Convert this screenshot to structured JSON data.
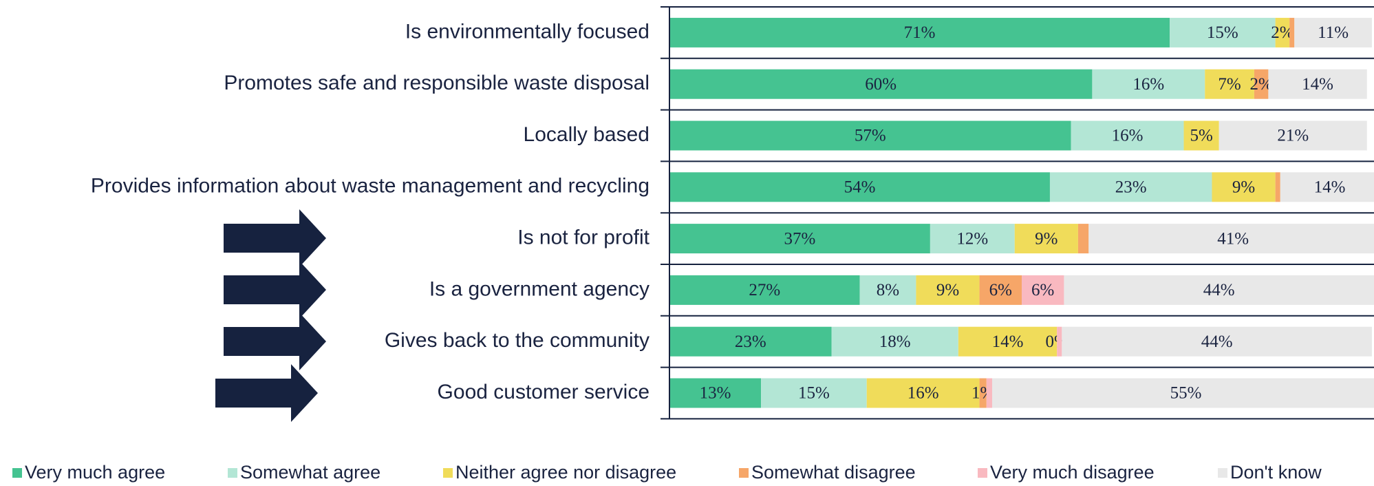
{
  "chart_data": {
    "type": "stacked-bar-horizontal",
    "categories": [
      "Is environmentally focused",
      "Promotes safe and responsible waste disposal",
      "Locally based",
      "Provides information about waste management and recycling",
      "Is not for profit",
      "Is a government agency",
      "Gives back to the community",
      "Good customer service"
    ],
    "xlim": [
      0,
      100
    ],
    "series": [
      {
        "name": "Very much agree",
        "color": "#45c391",
        "values": [
          71,
          60,
          57,
          54,
          37,
          27,
          23,
          13
        ],
        "value_labels": [
          "71%",
          "60%",
          "57%",
          "54%",
          "37%",
          "27%",
          "23%",
          "13%"
        ]
      },
      {
        "name": "Somewhat agree",
        "color": "#b3e6d5",
        "values": [
          15,
          16,
          16,
          23,
          12,
          8,
          18,
          15
        ],
        "value_labels": [
          "15%",
          "16%",
          "16%",
          "23%",
          "12%",
          "8%",
          "18%",
          "15%"
        ]
      },
      {
        "name": "Neither agree nor disagree",
        "color": "#f0dc5a",
        "values": [
          2,
          7,
          5,
          9,
          9,
          9,
          14,
          16
        ],
        "value_labels": [
          "2%",
          "7%",
          "5%",
          "9%",
          "9%",
          "9%",
          "14%",
          "16%"
        ]
      },
      {
        "name": "Somewhat disagree",
        "color": "#f6a668",
        "values": [
          0.7,
          2,
          0,
          0.7,
          1.5,
          6,
          0,
          1
        ],
        "value_labels": [
          null,
          "2%",
          null,
          null,
          null,
          "6%",
          "0%",
          "1%"
        ]
      },
      {
        "name": "Very much disagree",
        "color": "#f9b9c0",
        "values": [
          0,
          0,
          0,
          0,
          0,
          6,
          0.7,
          0.8
        ],
        "value_labels": [
          null,
          null,
          null,
          null,
          null,
          "6%",
          null,
          null
        ]
      },
      {
        "name": "Don't know",
        "color": "#e8e8e8",
        "values": [
          11,
          14,
          21,
          14,
          41,
          44,
          44,
          55
        ],
        "value_labels": [
          "11%",
          "14%",
          "21%",
          "14%",
          "41%",
          "44%",
          "44%",
          "55%"
        ]
      }
    ]
  }
}
